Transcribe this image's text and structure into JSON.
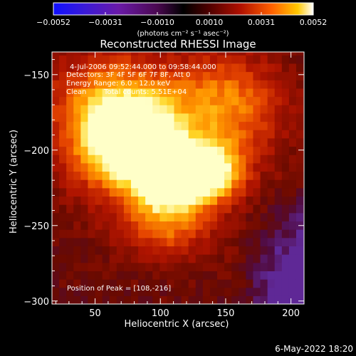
{
  "colorbar": {
    "ticks": [
      "−0.0052",
      "−0.0031",
      "−0.0010",
      "0.0010",
      "0.0031",
      "0.0052"
    ],
    "min": -0.0052,
    "max": 0.0052,
    "unit_label": "(photons cm⁻² s⁻¹ asec⁻²)"
  },
  "chart_data": {
    "type": "heatmap",
    "title": "Reconstructed RHESSI Image",
    "xlabel": "Heliocentric X (arcsec)",
    "ylabel": "Heliocentric Y (arcsec)",
    "xlim": [
      17,
      210
    ],
    "ylim": [
      -302,
      -135
    ],
    "x_ticks": [
      50,
      100,
      150,
      200
    ],
    "y_ticks": [
      -150,
      -200,
      -250,
      -300
    ],
    "x_tick_labels": [
      "50",
      "100",
      "150",
      "200"
    ],
    "y_tick_labels": [
      "−150",
      "−200",
      "−250",
      "−300"
    ],
    "colormap": "rhessi-bright",
    "peak_position": [
      108,
      -216
    ],
    "sources": [
      {
        "x": 78,
        "y": -195,
        "level": 0.88
      },
      {
        "x": 108,
        "y": -216,
        "level": 1.0
      },
      {
        "x": 138,
        "y": -214,
        "level": 0.8
      },
      {
        "x": 60,
        "y": -170,
        "level": 0.45
      },
      {
        "x": 150,
        "y": -168,
        "level": 0.42
      },
      {
        "x": 105,
        "y": -245,
        "level": 0.4
      }
    ],
    "annotations": {
      "time_range": "4-Jul-2006 09:52:44.000 to 09:58:44.000",
      "detectors": "Detectors: 3F 4F 5F 6F 7F 8F, Att 0",
      "energy": "Energy Range: 6.0 - 12.0 keV",
      "clean": "Clean",
      "total_counts": "Total counts: 5.51E+04",
      "peak": "Position of Peak = [108,-216]"
    }
  },
  "footer": {
    "date": "6-May-2022 18:20"
  }
}
